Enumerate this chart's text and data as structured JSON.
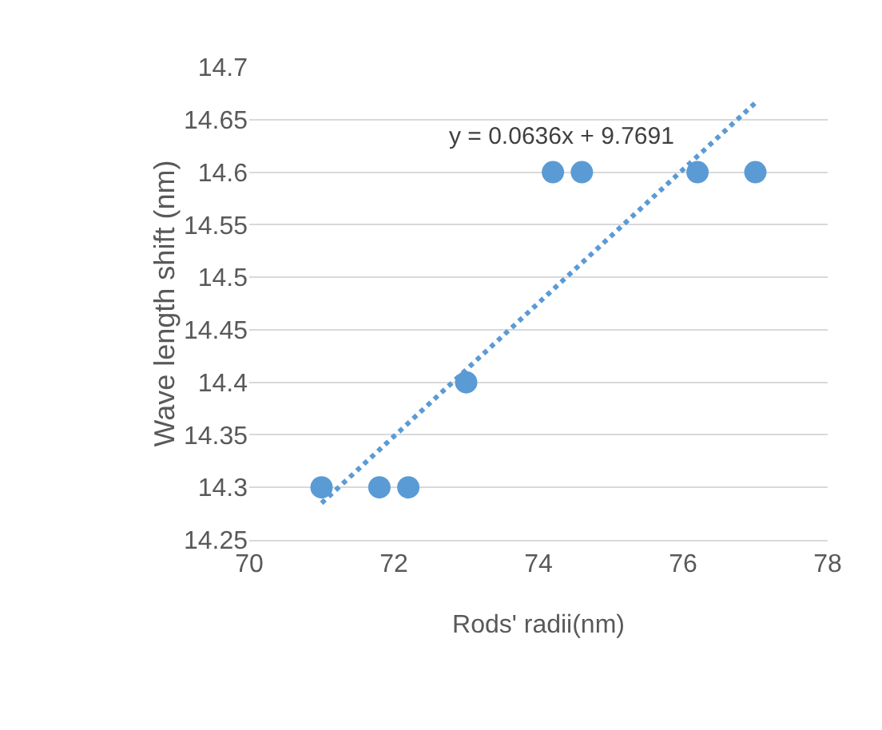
{
  "chart_data": {
    "type": "scatter",
    "xlabel": "Rods' radii(nm)",
    "ylabel": "Wave length shift (nm)",
    "x": [
      71,
      71.8,
      72.2,
      73,
      74.2,
      74.6,
      76.2,
      77
    ],
    "series": [
      {
        "color": "#5b9bd5",
        "values": [
          14.3,
          14.3,
          14.3,
          14.4,
          14.6,
          14.6,
          14.6,
          14.6
        ],
        "marker": "circle"
      },
      {
        "type": "line",
        "color": "#5b9bd5",
        "x": [
          71,
          77
        ],
        "values": [
          14.285,
          14.666
        ],
        "line_style": "dotted"
      }
    ],
    "annotations": [
      "y = 0.0636x + 9.7691"
    ],
    "xlim": [
      70,
      78
    ],
    "xticks": [
      70,
      72,
      74,
      76,
      78
    ],
    "ylim": [
      14.25,
      14.7
    ],
    "yticks": [
      14.25,
      14.3,
      14.35,
      14.4,
      14.45,
      14.5,
      14.55,
      14.6,
      14.65,
      14.7
    ],
    "grid": "y"
  }
}
